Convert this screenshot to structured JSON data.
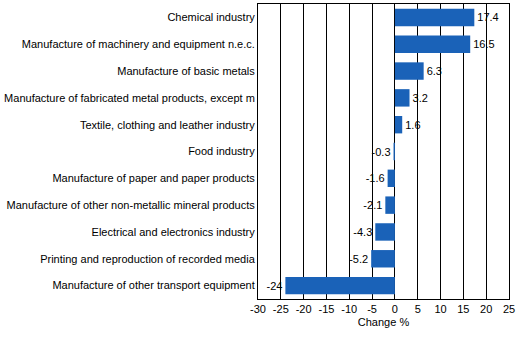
{
  "chart_data": {
    "type": "bar",
    "orientation": "horizontal",
    "categories": [
      "Chemical industry",
      "Manufacture of machinery and equipment n.e.c.",
      "Manufacture of basic metals",
      "Manufacture of fabricated metal products, except m",
      "Textile, clothing and leather industry",
      "Food industry",
      "Manufacture of paper and paper products",
      "Manufacture of other non-metallic mineral products",
      "Electrical and electronics industry",
      "Printing and reproduction of recorded media",
      "Manufacture of other transport equipment"
    ],
    "values": [
      17.4,
      16.5,
      6.3,
      3.2,
      1.6,
      -0.3,
      -1.6,
      -2.1,
      -4.3,
      -5.2,
      -24
    ],
    "color": "#1a62b8",
    "x_label": "Change %",
    "xlim": [
      -30,
      25
    ],
    "xticks": [
      -30,
      -25,
      -20,
      -15,
      -10,
      -5,
      0,
      5,
      10,
      15,
      20,
      25
    ],
    "grid": true,
    "data_labels": true
  }
}
